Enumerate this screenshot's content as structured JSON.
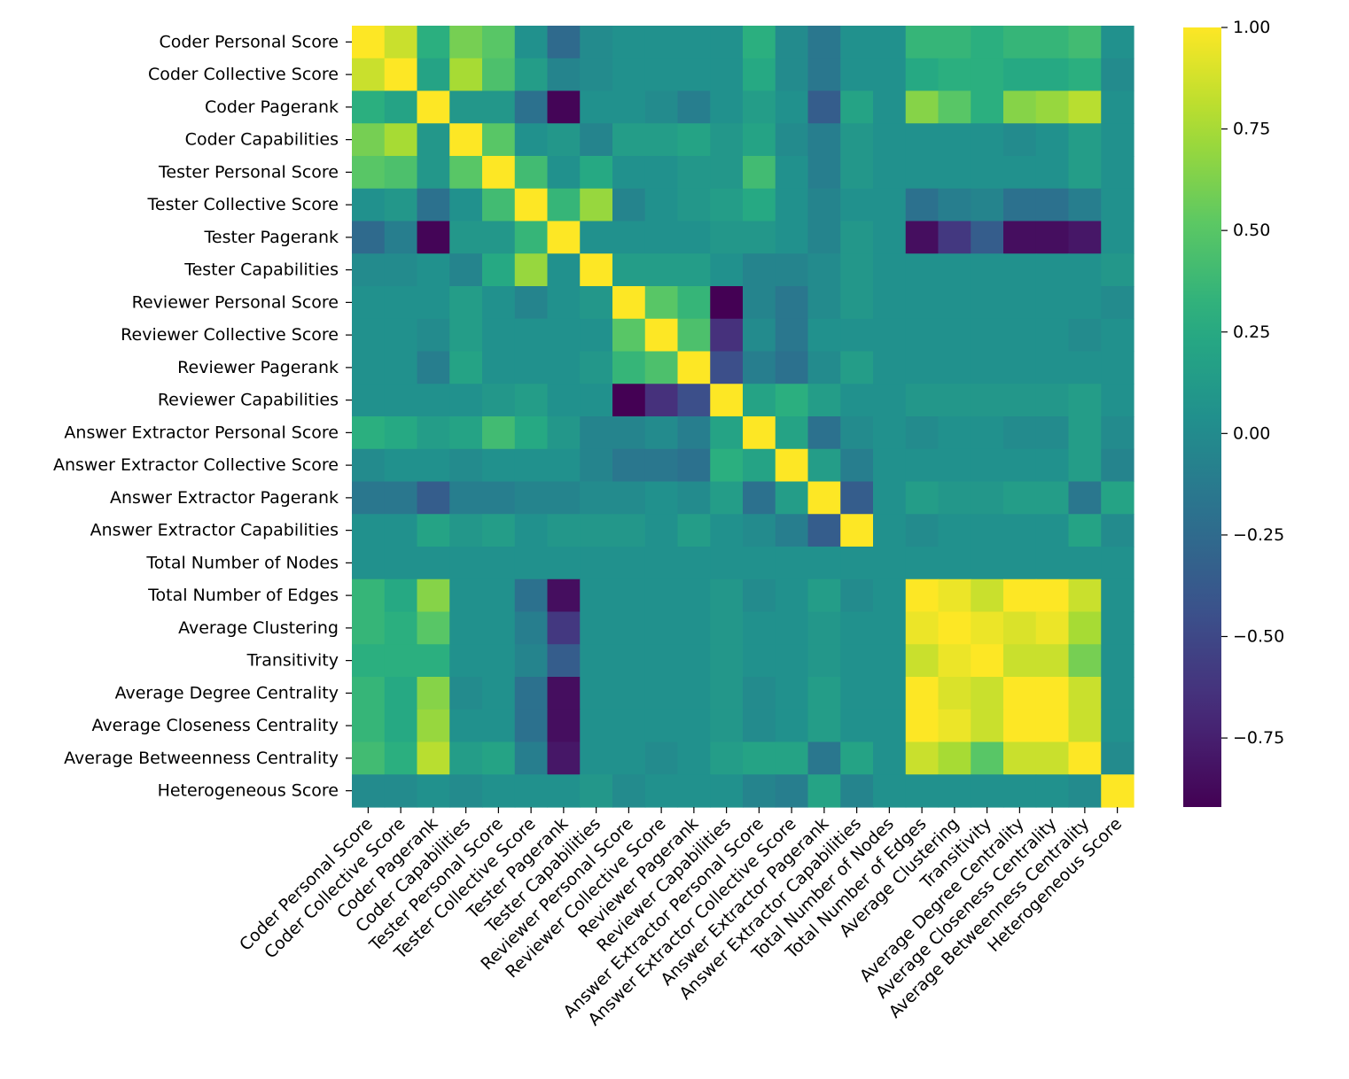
{
  "chart_data": {
    "type": "heatmap",
    "title": "",
    "colormap": "viridis",
    "vmin": -0.92,
    "vmax": 1.0,
    "colorbar_ticks": [
      1.0,
      0.75,
      0.5,
      0.25,
      0.0,
      -0.25,
      -0.5,
      -0.75
    ],
    "colorbar_tick_labels": [
      "1.00",
      "0.75",
      "0.50",
      "0.25",
      "0.00",
      "−0.25",
      "−0.50",
      "−0.75"
    ],
    "labels": [
      "Coder Personal Score",
      "Coder Collective Score",
      "Coder Pagerank",
      "Coder Capabilities",
      "Tester Personal Score",
      "Tester Collective Score",
      "Tester Pagerank",
      "Tester Capabilities",
      "Reviewer Personal Score",
      "Reviewer Collective Score",
      "Reviewer Pagerank",
      "Reviewer Capabilities",
      "Answer Extractor Personal Score",
      "Answer Extractor Collective Score",
      "Answer Extractor Pagerank",
      "Answer Extractor Capabilities",
      "Total Number of Nodes",
      "Total Number of Edges",
      "Average Clustering",
      "Transitivity",
      "Average Degree Centrality",
      "Average Closeness Centrality",
      "Average Betweenness Centrality",
      "Heterogeneous Score"
    ],
    "matrix": [
      [
        1.0,
        0.85,
        0.3,
        0.6,
        0.5,
        0.05,
        -0.25,
        0.0,
        0.05,
        0.05,
        0.05,
        0.05,
        0.3,
        0.0,
        -0.15,
        0.05,
        0.05,
        0.35,
        0.35,
        0.3,
        0.35,
        0.35,
        0.4,
        0.05
      ],
      [
        0.85,
        1.0,
        0.2,
        0.75,
        0.45,
        0.15,
        -0.05,
        0.0,
        0.05,
        0.05,
        0.05,
        0.05,
        0.25,
        0.0,
        -0.15,
        0.05,
        0.05,
        0.25,
        0.3,
        0.3,
        0.25,
        0.25,
        0.3,
        0.0
      ],
      [
        0.3,
        0.2,
        1.0,
        0.1,
        0.1,
        -0.2,
        -0.9,
        0.05,
        0.05,
        0.0,
        -0.1,
        0.05,
        0.15,
        0.05,
        -0.35,
        0.2,
        0.05,
        0.65,
        0.5,
        0.3,
        0.65,
        0.7,
        0.8,
        0.05
      ],
      [
        0.6,
        0.75,
        0.1,
        1.0,
        0.5,
        0.05,
        0.1,
        -0.05,
        0.15,
        0.15,
        0.2,
        0.1,
        0.2,
        0.0,
        -0.1,
        0.1,
        0.05,
        0.05,
        0.05,
        0.05,
        0.0,
        0.05,
        0.15,
        0.05
      ],
      [
        0.5,
        0.45,
        0.1,
        0.5,
        1.0,
        0.4,
        0.05,
        0.25,
        0.05,
        0.05,
        0.1,
        0.1,
        0.4,
        0.05,
        -0.1,
        0.1,
        0.05,
        0.05,
        0.05,
        0.05,
        0.05,
        0.05,
        0.15,
        0.05
      ],
      [
        0.05,
        0.1,
        -0.2,
        0.05,
        0.4,
        1.0,
        0.35,
        0.7,
        -0.05,
        0.05,
        0.1,
        0.15,
        0.25,
        0.05,
        -0.05,
        0.05,
        0.05,
        -0.2,
        -0.1,
        -0.05,
        -0.2,
        -0.2,
        -0.1,
        0.05
      ],
      [
        -0.25,
        -0.1,
        -0.9,
        0.1,
        0.1,
        0.35,
        1.0,
        0.05,
        0.05,
        0.05,
        0.05,
        0.1,
        0.1,
        0.05,
        -0.05,
        0.1,
        0.05,
        -0.85,
        -0.6,
        -0.35,
        -0.85,
        -0.85,
        -0.8,
        0.05
      ],
      [
        0.0,
        0.0,
        0.05,
        -0.05,
        0.25,
        0.7,
        0.05,
        1.0,
        0.15,
        0.15,
        0.15,
        0.05,
        -0.05,
        -0.05,
        0.0,
        0.1,
        0.05,
        0.05,
        0.05,
        0.05,
        0.05,
        0.05,
        0.05,
        0.1
      ],
      [
        0.05,
        0.05,
        0.05,
        0.15,
        0.05,
        -0.05,
        0.05,
        0.1,
        1.0,
        0.5,
        0.35,
        -0.92,
        -0.05,
        -0.15,
        0.0,
        0.1,
        0.05,
        0.05,
        0.05,
        0.05,
        0.05,
        0.05,
        0.05,
        0.0
      ],
      [
        0.05,
        0.05,
        0.0,
        0.15,
        0.05,
        0.05,
        0.05,
        0.05,
        0.5,
        1.0,
        0.45,
        -0.65,
        0.0,
        -0.15,
        0.05,
        0.05,
        0.05,
        0.05,
        0.05,
        0.05,
        0.05,
        0.05,
        0.0,
        0.05
      ],
      [
        0.05,
        0.05,
        -0.1,
        0.2,
        0.05,
        0.05,
        0.05,
        0.1,
        0.35,
        0.45,
        1.0,
        -0.45,
        -0.1,
        -0.2,
        0.0,
        0.15,
        0.05,
        0.05,
        0.05,
        0.05,
        0.05,
        0.05,
        0.05,
        0.05
      ],
      [
        0.05,
        0.05,
        0.05,
        0.05,
        0.1,
        0.15,
        0.05,
        0.05,
        -0.92,
        -0.65,
        -0.45,
        1.0,
        0.2,
        0.3,
        0.15,
        0.05,
        0.05,
        0.1,
        0.1,
        0.1,
        0.1,
        0.1,
        0.15,
        0.05
      ],
      [
        0.3,
        0.25,
        0.15,
        0.2,
        0.4,
        0.25,
        0.1,
        -0.05,
        -0.05,
        0.0,
        -0.1,
        0.2,
        1.0,
        0.2,
        -0.2,
        0.0,
        0.05,
        0.0,
        0.05,
        0.05,
        0.0,
        0.0,
        0.15,
        0.0
      ],
      [
        0.0,
        0.05,
        0.05,
        0.0,
        0.05,
        0.05,
        0.05,
        -0.05,
        -0.15,
        -0.15,
        -0.2,
        0.3,
        0.2,
        1.0,
        0.15,
        -0.1,
        0.05,
        0.05,
        0.05,
        0.05,
        0.05,
        0.05,
        0.15,
        -0.05
      ],
      [
        -0.15,
        -0.15,
        -0.35,
        -0.1,
        -0.1,
        -0.05,
        -0.05,
        0.0,
        0.0,
        0.05,
        0.0,
        0.15,
        -0.2,
        0.15,
        1.0,
        -0.35,
        0.05,
        0.15,
        0.1,
        0.1,
        0.15,
        0.15,
        -0.15,
        0.2
      ],
      [
        0.05,
        0.05,
        0.2,
        0.1,
        0.15,
        0.05,
        0.1,
        0.1,
        0.1,
        0.05,
        0.15,
        0.05,
        0.0,
        -0.1,
        -0.35,
        1.0,
        0.05,
        0.0,
        0.05,
        0.05,
        0.05,
        0.05,
        0.2,
        0.0
      ],
      [
        0.05,
        0.05,
        0.05,
        0.05,
        0.05,
        0.05,
        0.05,
        0.05,
        0.05,
        0.05,
        0.05,
        0.05,
        0.05,
        0.05,
        0.05,
        0.05,
        0.05,
        0.05,
        0.05,
        0.05,
        0.05,
        0.05,
        0.05,
        0.05
      ],
      [
        0.35,
        0.25,
        0.65,
        0.05,
        0.05,
        -0.2,
        -0.85,
        0.05,
        0.05,
        0.05,
        0.05,
        0.1,
        0.0,
        0.05,
        0.15,
        0.0,
        0.05,
        1.0,
        0.95,
        0.85,
        1.0,
        1.0,
        0.85,
        0.05
      ],
      [
        0.35,
        0.3,
        0.5,
        0.05,
        0.05,
        -0.1,
        -0.6,
        0.05,
        0.05,
        0.05,
        0.05,
        0.1,
        0.05,
        0.05,
        0.1,
        0.05,
        0.05,
        0.95,
        1.0,
        0.95,
        0.9,
        0.95,
        0.75,
        0.05
      ],
      [
        0.3,
        0.3,
        0.3,
        0.05,
        0.05,
        -0.05,
        -0.35,
        0.05,
        0.05,
        0.05,
        0.05,
        0.1,
        0.05,
        0.05,
        0.1,
        0.05,
        0.05,
        0.85,
        0.95,
        1.0,
        0.85,
        0.85,
        0.6,
        0.05
      ],
      [
        0.35,
        0.25,
        0.65,
        0.0,
        0.05,
        -0.2,
        -0.85,
        0.05,
        0.05,
        0.05,
        0.05,
        0.1,
        0.0,
        0.05,
        0.15,
        0.05,
        0.05,
        1.0,
        0.9,
        0.85,
        1.0,
        1.0,
        0.85,
        0.05
      ],
      [
        0.35,
        0.25,
        0.7,
        0.05,
        0.05,
        -0.2,
        -0.85,
        0.05,
        0.05,
        0.05,
        0.05,
        0.1,
        0.0,
        0.05,
        0.15,
        0.05,
        0.05,
        1.0,
        0.95,
        0.85,
        1.0,
        1.0,
        0.85,
        0.05
      ],
      [
        0.4,
        0.3,
        0.8,
        0.15,
        0.2,
        -0.1,
        -0.8,
        0.05,
        0.05,
        0.0,
        0.05,
        0.15,
        0.2,
        0.2,
        -0.15,
        0.2,
        0.05,
        0.85,
        0.75,
        0.5,
        0.85,
        0.85,
        1.0,
        0.0
      ],
      [
        0.0,
        0.0,
        0.05,
        0.0,
        0.05,
        0.05,
        0.05,
        0.1,
        0.0,
        0.05,
        0.05,
        0.05,
        -0.05,
        -0.1,
        0.2,
        -0.05,
        0.05,
        0.05,
        0.05,
        0.05,
        0.05,
        0.05,
        0.0,
        1.0
      ]
    ]
  }
}
